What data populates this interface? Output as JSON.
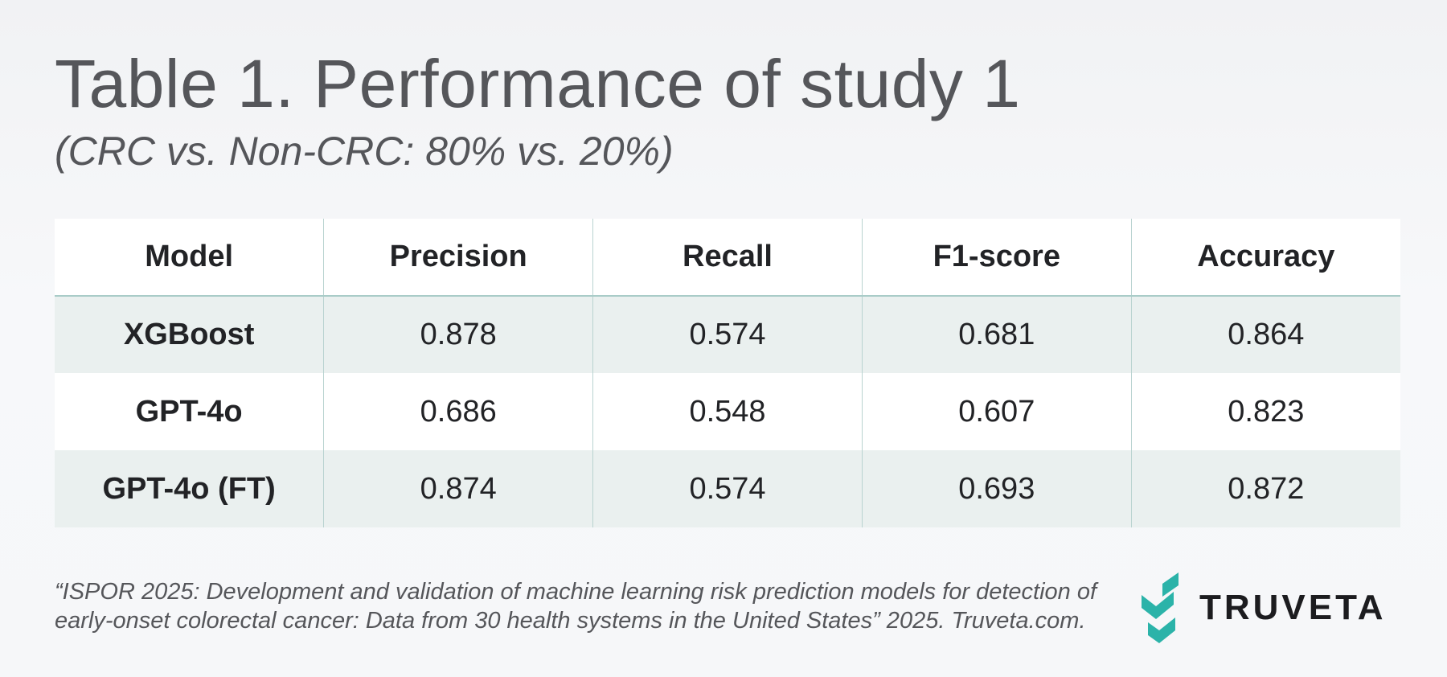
{
  "header": {
    "title": "Table 1. Performance of study 1",
    "subtitle": "(CRC vs. Non-CRC: 80% vs. 20%)"
  },
  "table": {
    "columns": [
      "Model",
      "Precision",
      "Recall",
      "F1-score",
      "Accuracy"
    ],
    "rows": [
      {
        "model": "XGBoost",
        "precision": "0.878",
        "recall": "0.574",
        "f1": "0.681",
        "accuracy": "0.864"
      },
      {
        "model": "GPT-4o",
        "precision": "0.686",
        "recall": "0.548",
        "f1": "0.607",
        "accuracy": "0.823"
      },
      {
        "model": "GPT-4o (FT)",
        "precision": "0.874",
        "recall": "0.574",
        "f1": "0.693",
        "accuracy": "0.872"
      }
    ]
  },
  "footer": {
    "citation": "“ISPOR 2025: Development and validation of machine learning risk prediction models for detection of early-onset colorectal cancer: Data from 30 health systems in the United States” 2025. Truveta.com.",
    "logo_text": "TRUVETA",
    "logo_icon": "truveta-chevron-logo",
    "logo_color": "#2bb3a9"
  },
  "colors": {
    "title_text": "#55565a",
    "body_text": "#222326",
    "row_shade": "#eaf0ef",
    "grid_line": "#b9d3d0"
  }
}
